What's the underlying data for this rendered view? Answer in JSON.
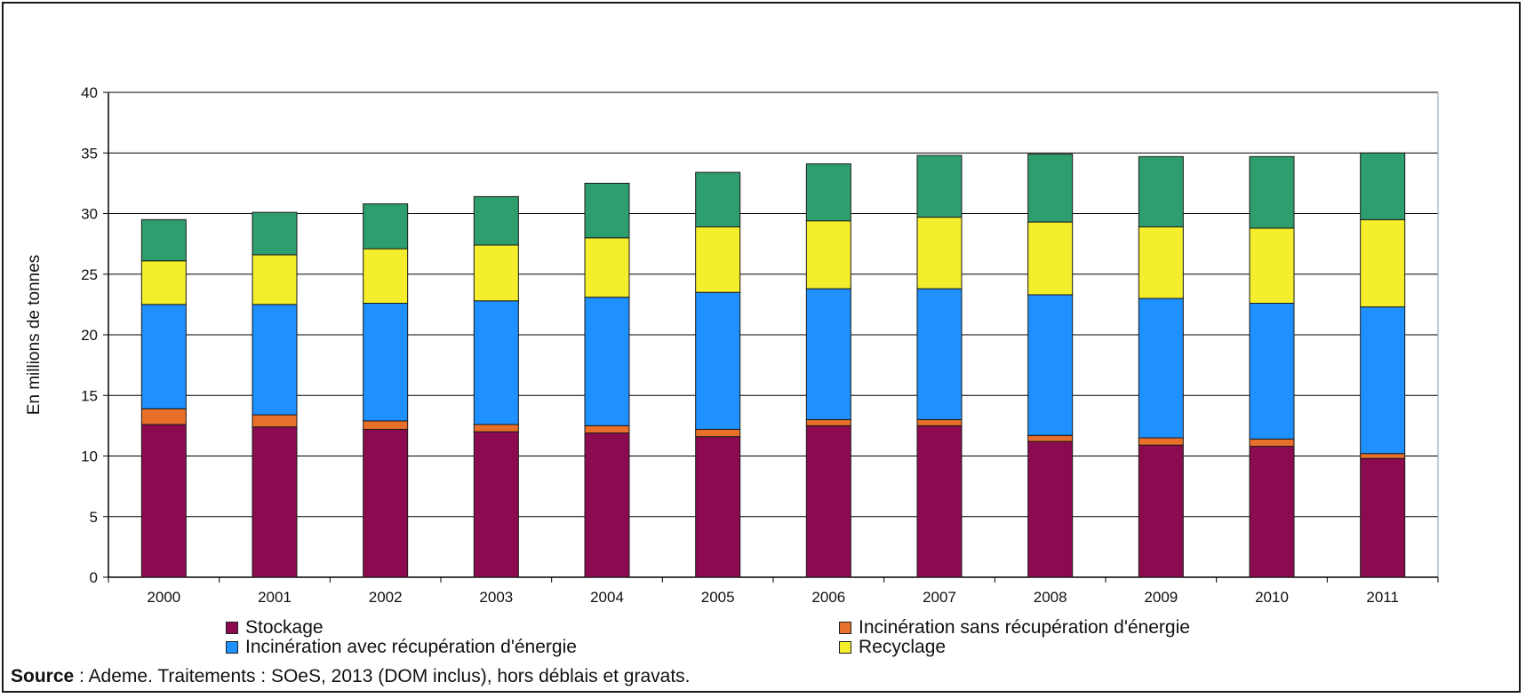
{
  "chart_data": {
    "type": "bar",
    "stacked": true,
    "categories": [
      "2000",
      "2001",
      "2002",
      "2003",
      "2004",
      "2005",
      "2006",
      "2007",
      "2008",
      "2009",
      "2010",
      "2011"
    ],
    "ylabel": "En millions de tonnes",
    "xlabel": "",
    "ylim": [
      0,
      40
    ],
    "yticks": [
      0,
      5,
      10,
      15,
      20,
      25,
      30,
      35,
      40
    ],
    "grid": true,
    "legend_position": "bottom",
    "series": [
      {
        "name": "Stockage",
        "color": "#8B0A50",
        "values": [
          12.6,
          12.4,
          12.2,
          12.0,
          11.9,
          11.6,
          12.5,
          12.5,
          11.2,
          10.9,
          10.8,
          9.8
        ]
      },
      {
        "name": "Incinération sans récupération d'énergie",
        "color": "#E8702A",
        "values": [
          1.3,
          1.0,
          0.7,
          0.6,
          0.6,
          0.6,
          0.5,
          0.5,
          0.5,
          0.6,
          0.6,
          0.4
        ]
      },
      {
        "name": "Incinération avec récupération d'énergie",
        "color": "#1E90FF",
        "values": [
          8.6,
          9.1,
          9.7,
          10.2,
          10.6,
          11.3,
          10.8,
          10.8,
          11.6,
          11.5,
          11.2,
          12.1
        ]
      },
      {
        "name": "Recyclage",
        "color": "#F4EE2C",
        "values": [
          3.6,
          4.1,
          4.5,
          4.6,
          4.9,
          5.4,
          5.6,
          5.9,
          6.0,
          5.9,
          6.2,
          7.2
        ]
      },
      {
        "name": "",
        "color": "#2E9E6E",
        "values": [
          3.4,
          3.5,
          3.7,
          4.0,
          4.5,
          4.5,
          4.7,
          5.1,
          5.6,
          5.8,
          5.9,
          5.5
        ]
      }
    ]
  },
  "legend": {
    "stockage": "Stockage",
    "incineration_sans": "Incinération sans récupération d'énergie",
    "incineration_avec": "Incinération avec récupération d'énergie",
    "recyclage": "Recyclage"
  },
  "source": {
    "label": "Source",
    "text": " : Ademe. Traitements : SOeS, 2013 (DOM inclus), hors déblais et gravats."
  }
}
